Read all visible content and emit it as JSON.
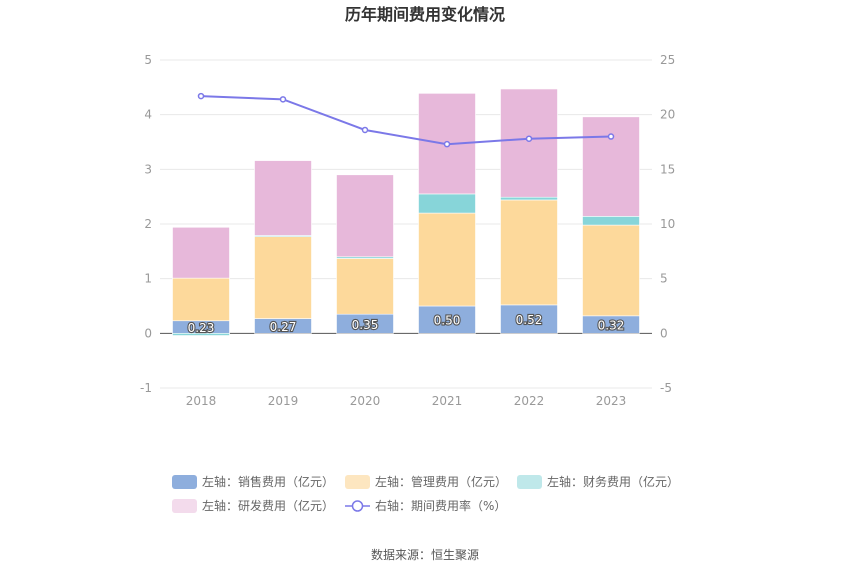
{
  "chart_data": {
    "type": "bar",
    "title": "历年期间费用变化情况",
    "categories": [
      "2018",
      "2019",
      "2020",
      "2021",
      "2022",
      "2023"
    ],
    "left_axis": {
      "ticks": [
        "5",
        "4",
        "3",
        "2",
        "1",
        "0",
        "-1"
      ],
      "ylim": [
        -1,
        5
      ]
    },
    "right_axis": {
      "ticks": [
        "25",
        "20",
        "15",
        "10",
        "5",
        "0",
        "-5"
      ],
      "ylim": [
        -5,
        25
      ]
    },
    "series": [
      {
        "name": "左轴：销售费用（亿元）",
        "axis": "left",
        "kind": "stacked-bar",
        "color": "#8eaedd",
        "values": [
          0.23,
          0.27,
          0.35,
          0.5,
          0.52,
          0.32
        ],
        "labels": [
          "0.23",
          "0.27",
          "0.35",
          "0.50",
          "0.52",
          "0.32"
        ]
      },
      {
        "name": "左轴：管理费用（亿元）",
        "axis": "left",
        "kind": "stacked-bar",
        "color": "#fdd99b",
        "values": [
          0.78,
          1.5,
          1.02,
          1.7,
          1.92,
          1.66
        ]
      },
      {
        "name": "左轴：财务费用（亿元）",
        "axis": "left",
        "kind": "stacked-bar",
        "color": "#87d5d9",
        "values": [
          -0.04,
          0.02,
          0.03,
          0.35,
          0.05,
          0.16
        ]
      },
      {
        "name": "左轴：研发费用（亿元）",
        "axis": "left",
        "kind": "stacked-bar",
        "color": "#e7b8da",
        "values": [
          0.93,
          1.37,
          1.5,
          1.84,
          1.98,
          1.82
        ]
      },
      {
        "name": "右轴：期间费用率（%）",
        "axis": "right",
        "kind": "line",
        "color": "#7b78e8",
        "values": [
          21.7,
          21.4,
          18.6,
          17.3,
          17.8,
          18.0
        ]
      }
    ],
    "grid": true,
    "legend_position": "bottom",
    "source": "数据来源：恒生聚源"
  }
}
